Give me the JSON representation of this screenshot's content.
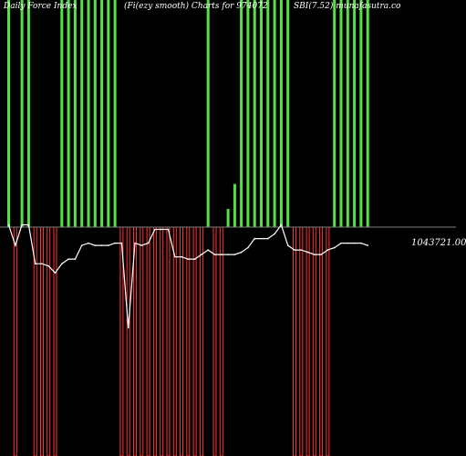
{
  "title": {
    "left": "Daily Force  Index",
    "middle": "(Fi(ezy smooth) Charts for 974072",
    "right": "SBI(7.52) munafasutra.co"
  },
  "last_value_label": "1043721.00",
  "colors": {
    "background": "#000000",
    "positive": "#55e045",
    "negative": "#ff3333",
    "line": "#ffffff",
    "zero_line": "#808080"
  },
  "chart_data": {
    "type": "bar",
    "title": "Daily Force  Index (Fi(ezy smooth) Charts for 974072 SBI(7.52) munafasutra.co",
    "xlabel": "",
    "ylabel": "",
    "ylim": [
      -1,
      1
    ],
    "grid": false,
    "series": [
      {
        "values": [
          1,
          -1,
          1,
          1,
          -1,
          -1,
          -1,
          -1,
          1,
          1,
          1,
          1,
          1,
          1,
          1,
          1,
          1,
          -1,
          -1,
          -1,
          -1,
          -1,
          -1,
          -1,
          -1,
          -1,
          -1,
          -1,
          -1,
          -1,
          1,
          -1,
          -1,
          0.08,
          0.19,
          1,
          1,
          1,
          1,
          1,
          1,
          1,
          1,
          -1,
          -1,
          -1,
          -1,
          -1,
          -1,
          1,
          1,
          1,
          1,
          1,
          1
        ]
      },
      {
        "values": [
          0.01,
          -0.08,
          0.01,
          0.01,
          -0.16,
          -0.16,
          -0.17,
          -0.2,
          -0.16,
          -0.14,
          -0.14,
          -0.08,
          -0.07,
          -0.08,
          -0.08,
          -0.08,
          -0.07,
          -0.07,
          -0.44,
          -0.07,
          -0.08,
          -0.07,
          -0.01,
          -0.01,
          -0.01,
          -0.13,
          -0.13,
          -0.14,
          -0.14,
          -0.12,
          -0.1,
          -0.12,
          -0.12,
          -0.12,
          -0.12,
          -0.11,
          -0.09,
          -0.05,
          -0.05,
          -0.05,
          -0.03,
          0.01,
          -0.08,
          -0.1,
          -0.1,
          -0.11,
          -0.12,
          -0.12,
          -0.1,
          -0.09,
          -0.07,
          -0.07,
          -0.07,
          -0.07,
          -0.08
        ]
      }
    ]
  }
}
